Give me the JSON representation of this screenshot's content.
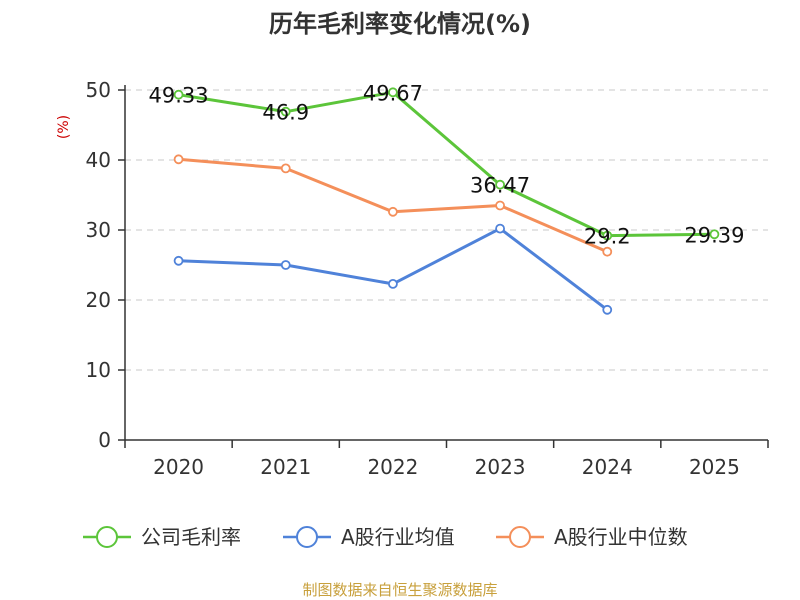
{
  "chart_data": {
    "type": "line",
    "title": "历年毛利率变化情况(%)",
    "ylabel": "(%)",
    "ylim": [
      0,
      50
    ],
    "yticks": [
      0,
      10,
      20,
      30,
      40,
      50
    ],
    "categories": [
      "2020",
      "2021",
      "2022",
      "2023",
      "2024",
      "2025"
    ],
    "grid": true,
    "legend_position": "bottom",
    "series": [
      {
        "name": "公司毛利率",
        "color": "#5cc53a",
        "values": [
          49.33,
          46.9,
          49.67,
          36.47,
          29.2,
          29.39
        ],
        "labels": [
          "49.33",
          "46.9",
          "49.67",
          "36.47",
          "29.2",
          "29.39"
        ]
      },
      {
        "name": "A股行业均值",
        "color": "#4f82d9",
        "values": [
          25.6,
          25.0,
          22.3,
          30.2,
          18.6,
          null
        ]
      },
      {
        "name": "A股行业中位数",
        "color": "#f48f5a",
        "values": [
          40.1,
          38.8,
          32.6,
          33.5,
          26.9,
          null
        ]
      }
    ],
    "source": "制图数据来自恒生聚源数据库"
  }
}
